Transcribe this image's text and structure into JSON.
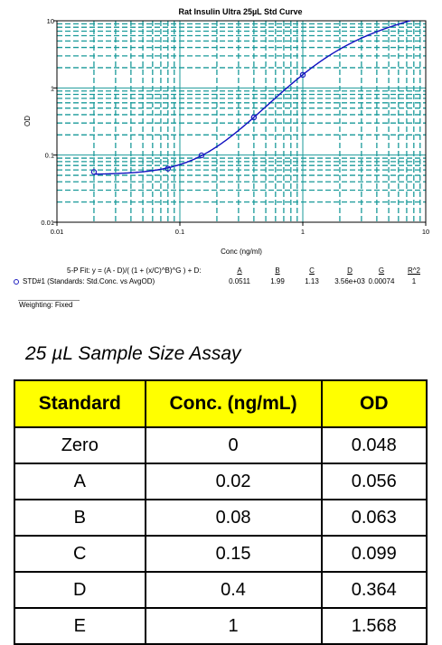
{
  "chart_data": {
    "type": "scatter",
    "title": "Rat Insulin Ultra 25µL Std Curve",
    "xlabel": "Conc (ng/ml)",
    "ylabel": "OD",
    "xscale": "log",
    "yscale": "log",
    "xlim": [
      0.01,
      10
    ],
    "ylim": [
      0.01,
      10
    ],
    "x_ticks": [
      "0.01",
      "0.1",
      "1",
      "10"
    ],
    "y_ticks": [
      "0.01",
      "0.1",
      "1",
      "10"
    ],
    "grid": true,
    "series": [
      {
        "name": "STD#1 (Standards: Std.Conc. vs AvgOD)",
        "marker": "circle",
        "color": "#2020c0",
        "points": [
          {
            "x": 0.02,
            "y": 0.056
          },
          {
            "x": 0.08,
            "y": 0.063
          },
          {
            "x": 0.15,
            "y": 0.099
          },
          {
            "x": 0.4,
            "y": 0.364
          },
          {
            "x": 1,
            "y": 1.568
          }
        ]
      }
    ],
    "fit": {
      "equation": "5-P Fit: y = (A - D)/( (1 + (x/C)^B)^G ) + D:",
      "headers": [
        "A",
        "B",
        "C",
        "D",
        "G",
        "R^2"
      ],
      "values": [
        "0.0511",
        "1.99",
        "1.13",
        "3.56e+03",
        "0.00074",
        "1"
      ],
      "params": {
        "A": 0.0511,
        "B": 1.99,
        "C": 1.13,
        "D": 3560,
        "G": 0.00074
      }
    },
    "weighting": "Weighting: Fixed",
    "grid_color": "#1a9a9a",
    "curve_color": "#1010c0"
  },
  "table": {
    "title": "25 µL Sample Size Assay",
    "headers": [
      "Standard",
      "Conc. (ng/mL)",
      "OD"
    ],
    "rows": [
      [
        "Zero",
        "0",
        "0.048"
      ],
      [
        "A",
        "0.02",
        "0.056"
      ],
      [
        "B",
        "0.08",
        "0.063"
      ],
      [
        "C",
        "0.15",
        "0.099"
      ],
      [
        "D",
        "0.4",
        "0.364"
      ],
      [
        "E",
        "1",
        "1.568"
      ]
    ],
    "header_color": "#ffff00"
  }
}
